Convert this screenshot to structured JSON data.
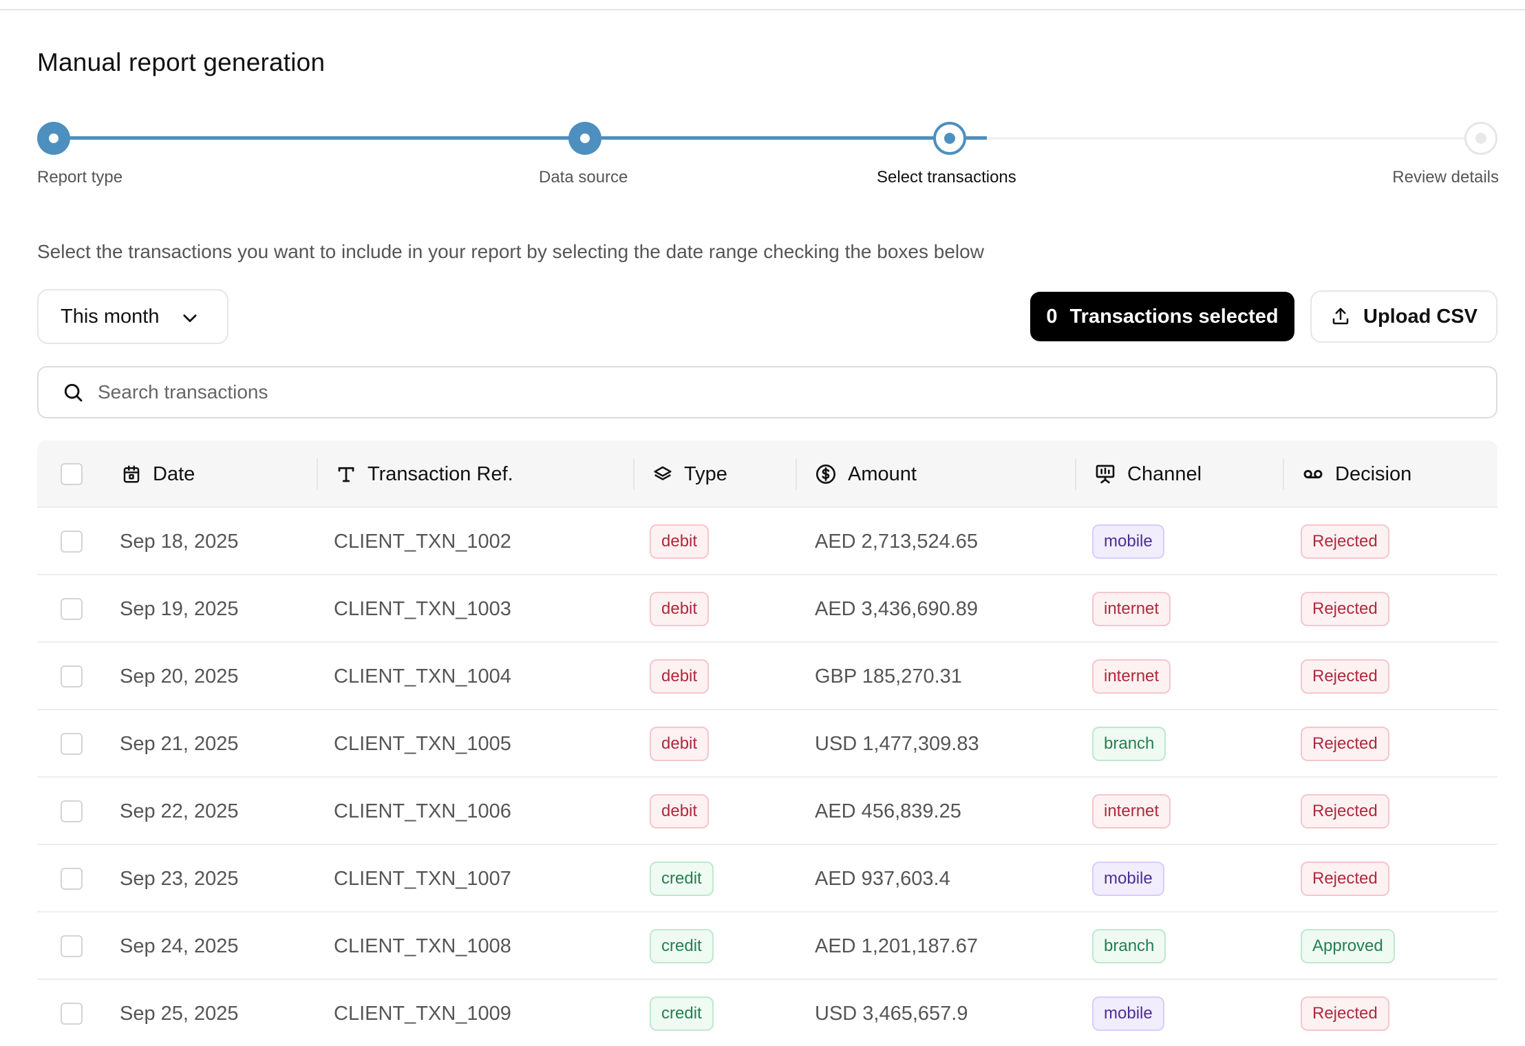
{
  "page": {
    "title": "Manual report generation"
  },
  "stepper": {
    "steps": [
      {
        "label": "Report type",
        "status": "done"
      },
      {
        "label": "Data source",
        "status": "done"
      },
      {
        "label": "Select transactions",
        "status": "current"
      },
      {
        "label": "Review details",
        "status": "upcoming"
      }
    ],
    "accent_color": "#4d8fbe"
  },
  "instructions": "Select the transactions you want to include in your report by selecting the date range checking the boxes below",
  "controls": {
    "date_range": {
      "value": "This month",
      "icon": "chevron-down-icon"
    },
    "selected": {
      "count": "0",
      "label": "Transactions selected"
    },
    "upload": {
      "label": "Upload CSV",
      "icon": "upload-icon"
    }
  },
  "search": {
    "placeholder": "Search transactions",
    "value": "",
    "icon": "search-icon"
  },
  "table": {
    "columns": [
      {
        "key": "date",
        "label": "Date",
        "icon": "calendar-icon"
      },
      {
        "key": "ref",
        "label": "Transaction Ref.",
        "icon": "text-type-icon"
      },
      {
        "key": "type",
        "label": "Type",
        "icon": "layers-icon"
      },
      {
        "key": "amount",
        "label": "Amount",
        "icon": "dollar-circle-icon"
      },
      {
        "key": "channel",
        "label": "Channel",
        "icon": "presentation-icon"
      },
      {
        "key": "decision",
        "label": "Decision",
        "icon": "voicemail-icon"
      }
    ],
    "rows": [
      {
        "date": "Sep 18, 2025",
        "ref": "CLIENT_TXN_1002",
        "type": "debit",
        "amount": "AED 2,713,524.65",
        "channel": "mobile",
        "decision": "Rejected",
        "checked": false
      },
      {
        "date": "Sep 19, 2025",
        "ref": "CLIENT_TXN_1003",
        "type": "debit",
        "amount": "AED 3,436,690.89",
        "channel": "internet",
        "decision": "Rejected",
        "checked": false
      },
      {
        "date": "Sep 20, 2025",
        "ref": "CLIENT_TXN_1004",
        "type": "debit",
        "amount": "GBP 185,270.31",
        "channel": "internet",
        "decision": "Rejected",
        "checked": false
      },
      {
        "date": "Sep 21, 2025",
        "ref": "CLIENT_TXN_1005",
        "type": "debit",
        "amount": "USD 1,477,309.83",
        "channel": "branch",
        "decision": "Rejected",
        "checked": false
      },
      {
        "date": "Sep 22, 2025",
        "ref": "CLIENT_TXN_1006",
        "type": "debit",
        "amount": "AED 456,839.25",
        "channel": "internet",
        "decision": "Rejected",
        "checked": false
      },
      {
        "date": "Sep 23, 2025",
        "ref": "CLIENT_TXN_1007",
        "type": "credit",
        "amount": "AED 937,603.4",
        "channel": "mobile",
        "decision": "Rejected",
        "checked": false
      },
      {
        "date": "Sep 24, 2025",
        "ref": "CLIENT_TXN_1008",
        "type": "credit",
        "amount": "AED 1,201,187.67",
        "channel": "branch",
        "decision": "Approved",
        "checked": false
      },
      {
        "date": "Sep 25, 2025",
        "ref": "CLIENT_TXN_1009",
        "type": "credit",
        "amount": "USD 3,465,657.9",
        "channel": "mobile",
        "decision": "Rejected",
        "checked": false
      }
    ]
  },
  "colors": {
    "negative": "#b0283c",
    "positive": "#23804e",
    "mobile": "#4b2e96",
    "primary_button": "#000000"
  }
}
